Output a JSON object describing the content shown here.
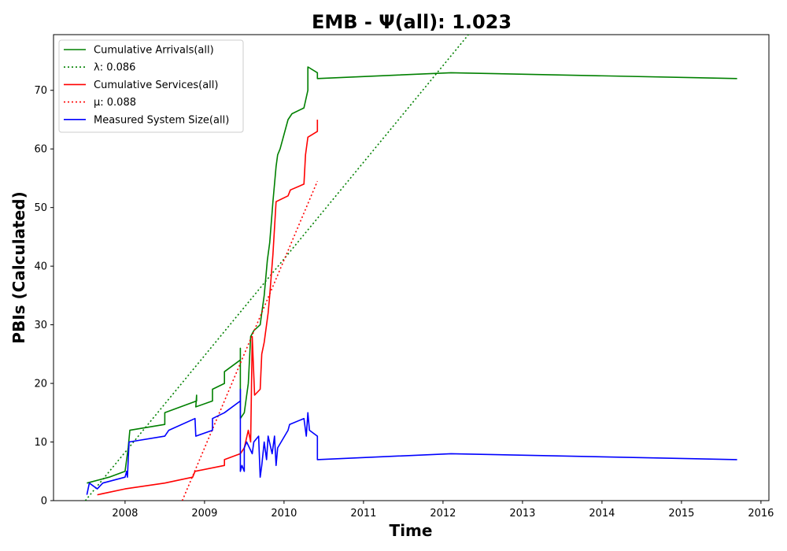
{
  "chart_data": {
    "type": "line",
    "title": "EMB -  Ψ(all): 1.023",
    "xlabel": "Time",
    "ylabel": "PBIs (Calculated)",
    "xlim": [
      2007.1,
      2016.1
    ],
    "ylim": [
      0,
      79.5
    ],
    "xticks": [
      2008,
      2009,
      2010,
      2011,
      2012,
      2013,
      2014,
      2015,
      2016
    ],
    "yticks": [
      0,
      10,
      20,
      30,
      40,
      50,
      60,
      70
    ],
    "grid": false,
    "legend_position": "top-left",
    "series": [
      {
        "name": "Cumulative Arrivals(all)",
        "legend": "Cumulative Arrivals(all)",
        "color": "#008000",
        "style": "solid",
        "x": [
          2007.52,
          2007.8,
          2008.0,
          2008.04,
          2008.06,
          2008.5,
          2008.5,
          2008.9,
          2008.9,
          2008.89,
          2009.1,
          2009.1,
          2009.25,
          2009.25,
          2009.45,
          2009.45,
          2009.45,
          2009.5,
          2009.55,
          2009.58,
          2009.62,
          2009.7,
          2009.72,
          2009.75,
          2009.79,
          2009.82,
          2009.86,
          2009.88,
          2009.9,
          2009.92,
          2009.95,
          2010.05,
          2010.1,
          2010.25,
          2010.3,
          2010.3,
          2010.42,
          2010.42,
          2012.1,
          2015.7
        ],
        "values": [
          3,
          4,
          5,
          9,
          12,
          13,
          15,
          17,
          18,
          16,
          17,
          19,
          20,
          22,
          24,
          26,
          14,
          15,
          20,
          28,
          29,
          30,
          32,
          35,
          41,
          44,
          51,
          54,
          57,
          59,
          60,
          65,
          66,
          67,
          70,
          74,
          73,
          72,
          73,
          72
        ]
      },
      {
        "name": "lambda-trend",
        "legend": "λ: 0.086",
        "color": "#008000",
        "style": "dotted",
        "x": [
          2007.5,
          2012.35
        ],
        "values": [
          0,
          80
        ]
      },
      {
        "name": "Cumulative Services(all)",
        "legend": "Cumulative Services(all)",
        "color": "#ff0000",
        "style": "solid",
        "x": [
          2007.65,
          2008.0,
          2008.5,
          2008.85,
          2008.88,
          2009.25,
          2009.25,
          2009.45,
          2009.5,
          2009.55,
          2009.58,
          2009.6,
          2009.63,
          2009.7,
          2009.72,
          2009.75,
          2009.8,
          2009.82,
          2009.86,
          2009.9,
          2010.05,
          2010.08,
          2010.25,
          2010.27,
          2010.3,
          2010.42,
          2010.42
        ],
        "values": [
          1,
          2,
          3,
          4,
          5,
          6,
          7,
          8,
          9,
          12,
          10,
          28,
          18,
          19,
          25,
          27,
          32,
          35,
          42,
          51,
          52,
          53,
          54,
          59,
          62,
          63,
          65
        ]
      },
      {
        "name": "mu-trend",
        "legend": "μ: 0.088",
        "color": "#ff0000",
        "style": "dotted",
        "x": [
          2008.72,
          2010.42
        ],
        "values": [
          0,
          54.5
        ]
      },
      {
        "name": "Measured System Size(all)",
        "legend": "Measured System Size(all)",
        "color": "#0000ff",
        "style": "solid",
        "x": [
          2007.52,
          2007.55,
          2007.65,
          2007.72,
          2008.0,
          2008.02,
          2008.03,
          2008.05,
          2008.5,
          2008.55,
          2008.88,
          2008.89,
          2009.1,
          2009.1,
          2009.25,
          2009.45,
          2009.45,
          2009.45,
          2009.47,
          2009.5,
          2009.5,
          2009.53,
          2009.6,
          2009.62,
          2009.68,
          2009.7,
          2009.72,
          2009.75,
          2009.78,
          2009.8,
          2009.85,
          2009.88,
          2009.9,
          2009.92,
          2010.05,
          2010.07,
          2010.25,
          2010.28,
          2010.3,
          2010.32,
          2010.42,
          2010.42,
          2012.1,
          2015.7
        ],
        "values": [
          1,
          3,
          2,
          3,
          4,
          5,
          4,
          10,
          11,
          12,
          14,
          11,
          12,
          14,
          15,
          17,
          19,
          5,
          6,
          5,
          9,
          10,
          8,
          10,
          11,
          4,
          6,
          10,
          7,
          11,
          8,
          11,
          6,
          9,
          12,
          13,
          14,
          11,
          15,
          12,
          11,
          7,
          8,
          7
        ]
      }
    ]
  }
}
